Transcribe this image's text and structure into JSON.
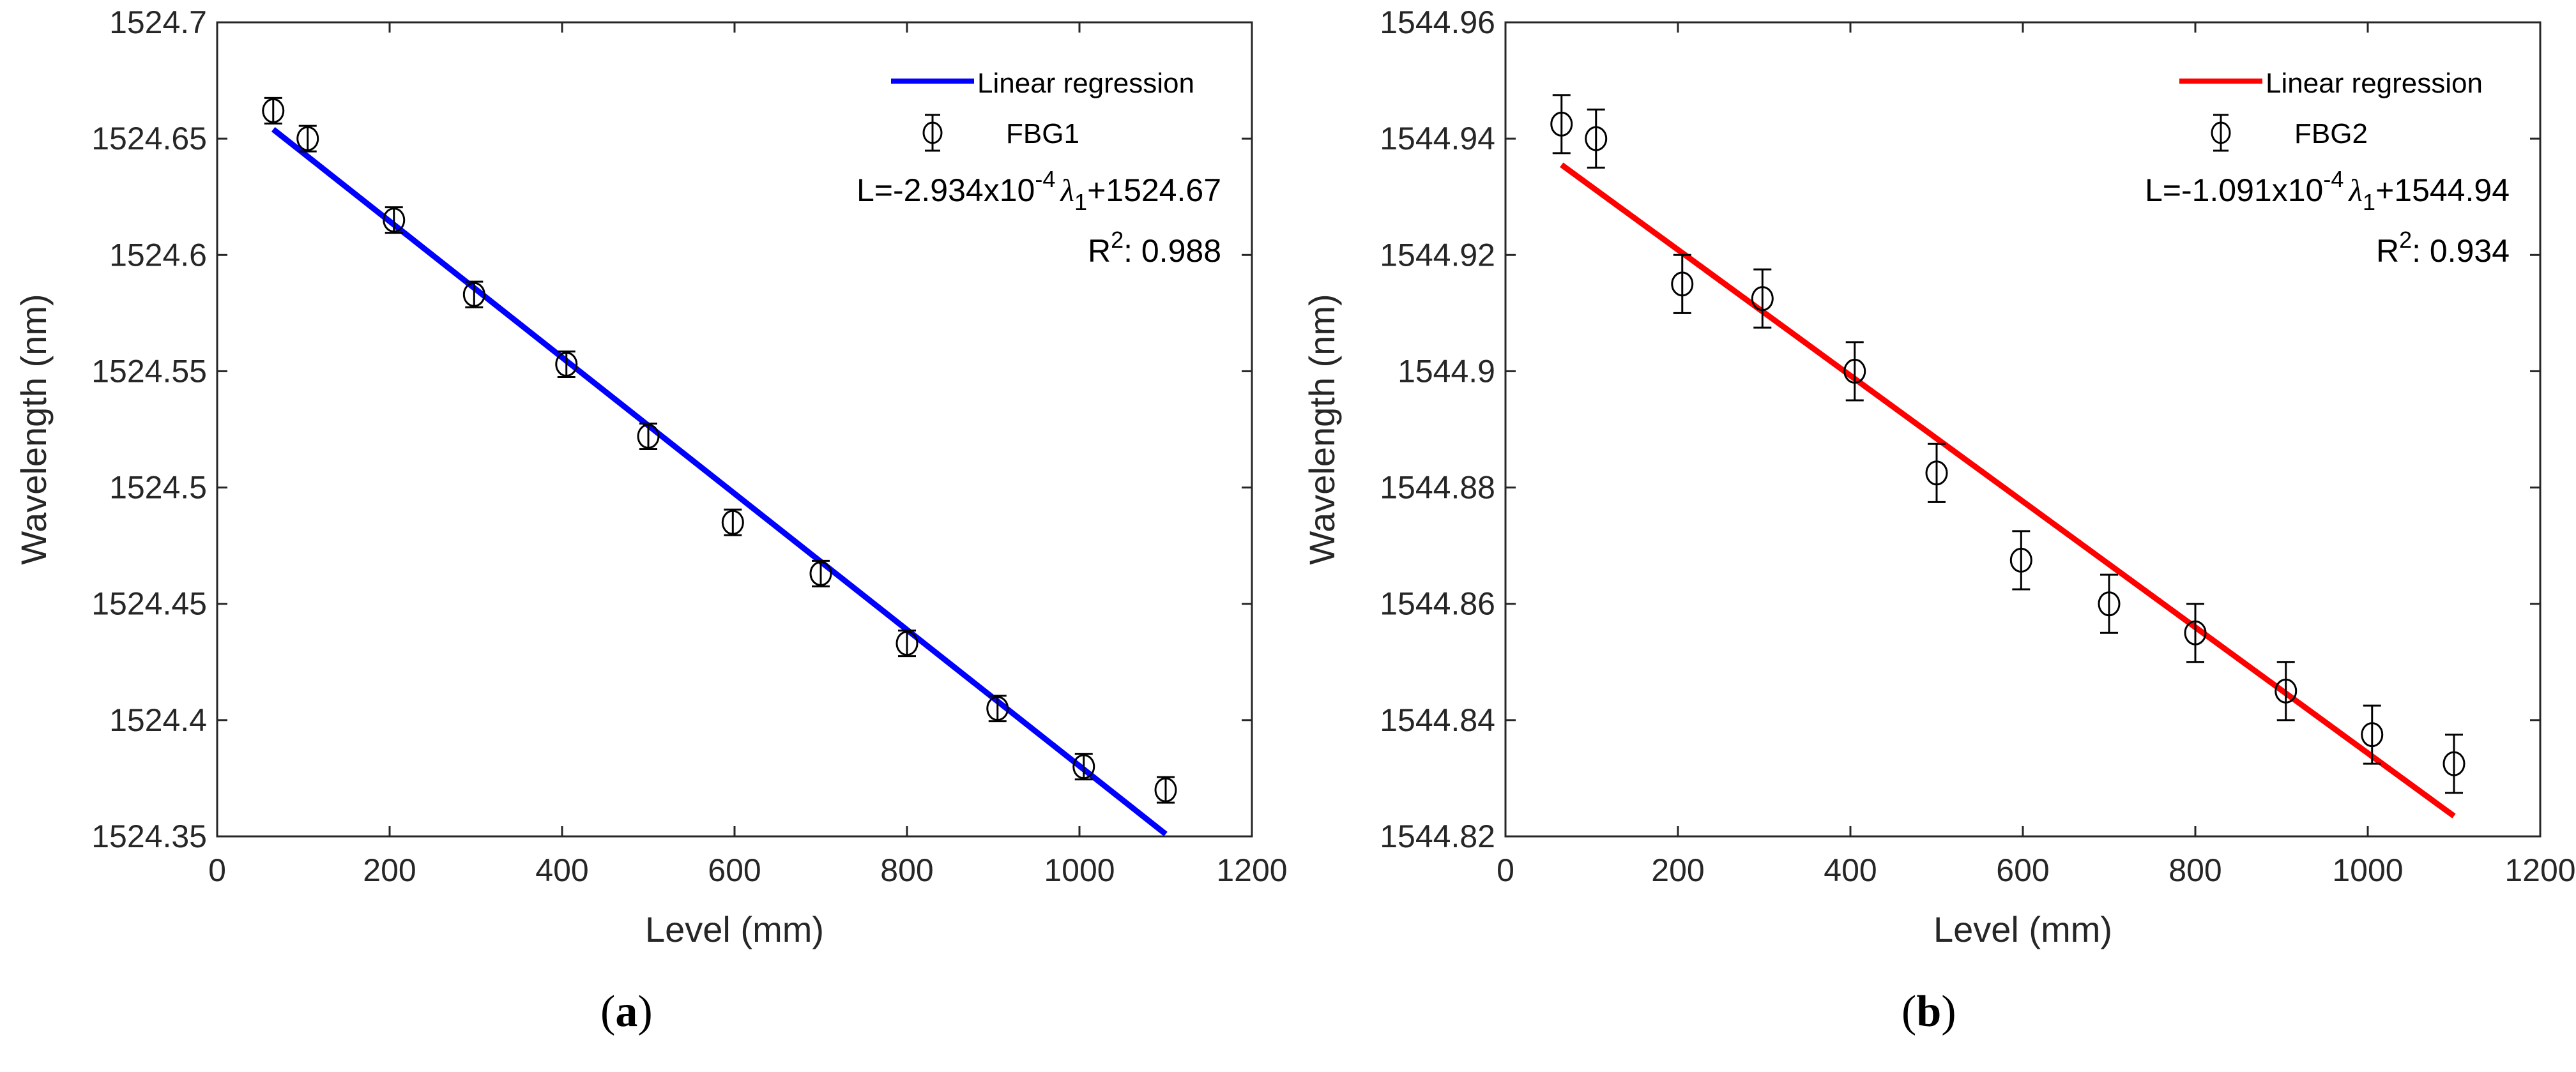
{
  "chart_data": [
    {
      "type": "scatter",
      "panel_label": {
        "open": "(",
        "letter": "a",
        "close": ")"
      },
      "xlabel": "Level (mm)",
      "ylabel": "Wavelength (nm)",
      "xlim": [
        0,
        1200
      ],
      "ylim": [
        1524.35,
        1524.7
      ],
      "xticks": [
        0,
        200,
        400,
        600,
        800,
        1000,
        1200
      ],
      "xtick_labels": [
        "0",
        "200",
        "400",
        "600",
        "800",
        "1000",
        "1200"
      ],
      "yticks": [
        1524.35,
        1524.4,
        1524.45,
        1524.5,
        1524.55,
        1524.6,
        1524.65,
        1524.7
      ],
      "ytick_labels": [
        "1524.35",
        "1524.4",
        "1524.45",
        "1524.5",
        "1524.55",
        "1524.6",
        "1524.65",
        "1524.7"
      ],
      "fit_color": "#0000ff",
      "fit_line": {
        "x": [
          65,
          1100
        ],
        "y": [
          1524.654,
          1524.351
        ]
      },
      "series": [
        {
          "name": "FBG1",
          "x": [
            65,
            105,
            205,
            298,
            405,
            500,
            598,
            700,
            800,
            905,
            1005,
            1100
          ],
          "y": [
            1524.662,
            1524.65,
            1524.615,
            1524.583,
            1524.553,
            1524.522,
            1524.485,
            1524.463,
            1524.433,
            1524.405,
            1524.38,
            1524.37
          ],
          "err": [
            0.0055,
            0.0055,
            0.0055,
            0.0055,
            0.0055,
            0.0055,
            0.0055,
            0.0055,
            0.0055,
            0.0055,
            0.0055,
            0.0055
          ]
        }
      ],
      "legend": {
        "fit_label": "Linear regression",
        "data_label": "FBG1",
        "position": "top-right"
      },
      "annotation": {
        "eq_prefix": "L=-2.934x10",
        "eq_exp": "-4",
        "eq_lambda": "λ",
        "eq_sub": "1",
        "eq_suffix": "+1524.67",
        "r2_prefix": "R",
        "r2_sup": "2",
        "r2_value": ": 0.988"
      }
    },
    {
      "type": "scatter",
      "panel_label": {
        "open": "(",
        "letter": "b",
        "close": ")"
      },
      "xlabel": "Level (mm)",
      "ylabel": "Wavelength (nm)",
      "xlim": [
        0,
        1200
      ],
      "ylim": [
        1544.82,
        1544.96
      ],
      "xticks": [
        0,
        200,
        400,
        600,
        800,
        1000,
        1200
      ],
      "xtick_labels": [
        "0",
        "200",
        "400",
        "600",
        "800",
        "1000",
        "1200"
      ],
      "yticks": [
        1544.82,
        1544.84,
        1544.86,
        1544.88,
        1544.9,
        1544.92,
        1544.94,
        1544.96
      ],
      "ytick_labels": [
        "1544.82",
        "1544.84",
        "1544.86",
        "1544.88",
        "1544.9",
        "1544.92",
        "1544.94",
        "1544.96"
      ],
      "fit_color": "#ff0000",
      "fit_line": {
        "x": [
          65,
          1100
        ],
        "y": [
          1544.9355,
          1544.8235
        ]
      },
      "series": [
        {
          "name": "FBG2",
          "x": [
            65,
            105,
            205,
            298,
            405,
            500,
            598,
            700,
            800,
            905,
            1005,
            1100
          ],
          "y": [
            1544.9425,
            1544.94,
            1544.915,
            1544.9125,
            1544.9,
            1544.8825,
            1544.8675,
            1544.86,
            1544.855,
            1544.845,
            1544.8375,
            1544.8325
          ],
          "err": [
            0.005,
            0.005,
            0.005,
            0.005,
            0.005,
            0.005,
            0.005,
            0.005,
            0.005,
            0.005,
            0.005,
            0.005
          ]
        }
      ],
      "legend": {
        "fit_label": "Linear regression",
        "data_label": "FBG2",
        "position": "top-right"
      },
      "annotation": {
        "eq_prefix": "L=-1.091x10",
        "eq_exp": "-4",
        "eq_lambda": "λ",
        "eq_sub": "1",
        "eq_suffix": "+1544.94",
        "r2_prefix": "R",
        "r2_sup": "2",
        "r2_value": ": 0.934"
      }
    }
  ]
}
